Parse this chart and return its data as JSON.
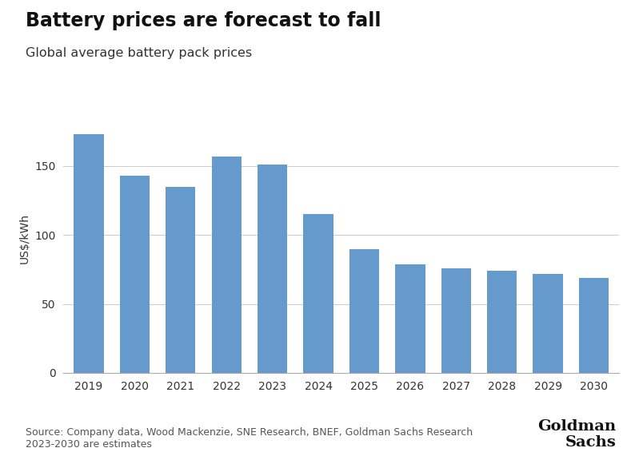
{
  "title": "Battery prices are forecast to fall",
  "subtitle": "Global average battery pack prices",
  "categories": [
    "2019",
    "2020",
    "2021",
    "2022",
    "2023",
    "2024",
    "2025",
    "2026",
    "2027",
    "2028",
    "2029",
    "2030"
  ],
  "values": [
    173,
    143,
    135,
    157,
    151,
    115,
    90,
    79,
    76,
    74,
    72,
    69
  ],
  "bar_color": "#6699cc",
  "ylabel": "US$/kWh",
  "ylim": [
    0,
    195
  ],
  "yticks": [
    0,
    50,
    100,
    150
  ],
  "background_color": "#ffffff",
  "source_text": "Source: Company data, Wood Mackenzie, SNE Research, BNEF, Goldman Sachs Research\n2023-2030 are estimates",
  "logo_line1": "Goldman",
  "logo_line2": "Sachs",
  "title_fontsize": 17,
  "subtitle_fontsize": 11.5,
  "ylabel_fontsize": 10,
  "tick_fontsize": 10,
  "source_fontsize": 9,
  "logo_fontsize": 14
}
